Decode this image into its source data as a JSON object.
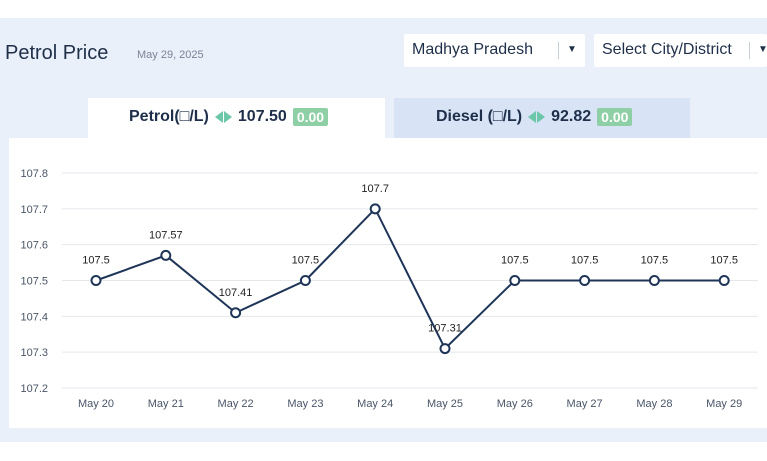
{
  "header": {
    "title": "Petrol Price",
    "date": "May 29, 2025"
  },
  "filters": {
    "state": "Madhya Pradesh",
    "city_placeholder": "Select City/District"
  },
  "tabs": [
    {
      "label": "Petrol(□/L)",
      "price": "107.50",
      "change": "0.00",
      "active": true
    },
    {
      "label": "Diesel (□/L)",
      "price": "92.82",
      "change": "0.00",
      "active": false
    }
  ],
  "colors": {
    "line": "#1f3558",
    "change_badge": "#8fcfa6",
    "arrow": "#6cc7a8",
    "panel_bg": "#eaf0fa",
    "inactive_tab": "#d8e3f6"
  },
  "chart_data": {
    "type": "line",
    "categories": [
      "May 20",
      "May 21",
      "May 22",
      "May 23",
      "May 24",
      "May 25",
      "May 26",
      "May 27",
      "May 28",
      "May 29"
    ],
    "series": [
      {
        "values": [
          107.5,
          107.57,
          107.41,
          107.5,
          107.7,
          107.31,
          107.5,
          107.5,
          107.5,
          107.5
        ]
      }
    ],
    "data_labels": [
      "107.5",
      "107.57",
      "107.41",
      "107.5",
      "107.7",
      "107.31",
      "107.5",
      "107.5",
      "107.5",
      "107.5"
    ],
    "y_ticks": [
      "107.2",
      "107.3",
      "107.4",
      "107.5",
      "107.6",
      "107.7",
      "107.8"
    ],
    "ylim": [
      107.2,
      107.8
    ],
    "grid": true,
    "markers": "hollow-circle"
  }
}
